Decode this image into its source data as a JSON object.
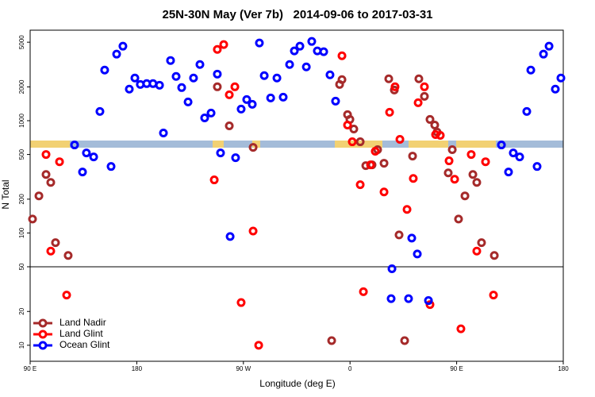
{
  "chart_data": {
    "type": "scatter",
    "title": "25N-30N May (Ver 7b)   2014-09-06 to 2017-03-31",
    "x_label": "Longitude (deg E)",
    "y_label": "N Total",
    "xlim": [
      90,
      540
    ],
    "xticks": [
      {
        "value": 90,
        "label": "90 E"
      },
      {
        "value": 180,
        "label": "180"
      },
      {
        "value": 270,
        "label": "90 W"
      },
      {
        "value": 360,
        "label": "0"
      },
      {
        "value": 450,
        "label": "90 E"
      },
      {
        "value": 540,
        "label": "180"
      }
    ],
    "ylim": [
      7.2,
      6400
    ],
    "yscale": "log",
    "yticks": [
      10,
      20,
      50,
      100,
      200,
      500,
      1000,
      2000,
      5000
    ],
    "hline": 50,
    "legend": "lower left",
    "series": [
      {
        "name": "Land Nadir",
        "color": "#a52a2a",
        "x": [
          92.0,
          97.4,
          103.4,
          107.4,
          111.4,
          122.1,
          248.0,
          258.1,
          278.2,
          344.5,
          351.2,
          353.2,
          357.9,
          359.9,
          363.2,
          368.6,
          373.3,
          378.6,
          383.3,
          388.7,
          392.7,
          397.4,
          401.4,
          406.1,
          412.8,
          418.1,
          422.8,
          427.5,
          431.5,
          433.5,
          442.9,
          446.3,
          451.6,
          457.0,
          463.7,
          467.0,
          471.0,
          481.8
        ],
        "values": [
          133,
          214,
          332,
          282,
          82,
          63,
          2004,
          900,
          579,
          11,
          2104,
          2322,
          1132,
          1026,
          843,
          649,
          398,
          404,
          552,
          418,
          2360,
          1875,
          96,
          11,
          484,
          2360,
          1647,
          1026,
          914,
          791,
          343,
          552,
          133,
          214,
          332,
          282,
          82,
          63
        ]
      },
      {
        "name": "Land Glint",
        "color": "#ff0000",
        "x": [
          103.4,
          107.4,
          114.8,
          120.8,
          245.4,
          248.0,
          253.4,
          258.1,
          262.8,
          268.1,
          278.2,
          282.9,
          353.2,
          357.9,
          361.9,
          368.6,
          371.3,
          377.3,
          381.3,
          388.7,
          393.4,
          398.0,
          402.1,
          408.1,
          413.4,
          417.5,
          422.8,
          427.5,
          432.2,
          436.2,
          443.6,
          448.3,
          453.6,
          462.3,
          467.0,
          474.4,
          481.1
        ],
        "values": [
          500,
          69,
          431,
          28,
          297,
          4315,
          4764,
          1701,
          2004,
          24,
          104,
          10,
          3785,
          914,
          649,
          269,
          30,
          404,
          534,
          232,
          1188,
          2004,
          682,
          162,
          306,
          1445,
          2004,
          23,
          752,
          740,
          439,
          301,
          14,
          500,
          69,
          431,
          28
        ]
      },
      {
        "name": "Ocean Glint",
        "color": "#0000ff",
        "x": [
          127.5,
          134.2,
          137.5,
          143.6,
          148.9,
          152.9,
          158.3,
          163.0,
          168.3,
          173.7,
          178.4,
          183.0,
          188.4,
          193.7,
          199.2,
          202.5,
          208.5,
          213.2,
          217.9,
          223.3,
          227.9,
          233.3,
          237.3,
          242.7,
          248.0,
          250.7,
          258.8,
          263.4,
          268.1,
          272.8,
          277.5,
          283.5,
          287.6,
          293.0,
          298.3,
          303.6,
          309.0,
          313.0,
          317.7,
          323.1,
          327.7,
          332.4,
          337.8,
          343.1,
          347.8,
          395.4,
          394.7,
          409.4,
          412.1,
          416.8,
          426.2,
          487.8,
          493.8,
          497.8,
          503.2,
          509.2,
          512.6,
          517.9,
          523.3,
          528.0,
          533.3,
          538.0
        ],
        "values": [
          608,
          349,
          516,
          476,
          1208,
          2824,
          391,
          3915,
          4608,
          1909,
          2399,
          2104,
          2139,
          2139,
          2070,
          777,
          3436,
          2477,
          1972,
          1469,
          2399,
          3163,
          1059,
          1169,
          2600,
          516,
          93,
          468,
          1268,
          1543,
          1399,
          4920,
          2518,
          1595,
          2399,
          1621,
          3163,
          4180,
          4608,
          3013,
          5080,
          4180,
          4112,
          2559,
          1494,
          48,
          26,
          26,
          90,
          65,
          25,
          608,
          349,
          516,
          476,
          1208,
          2824,
          391,
          3915,
          4608,
          1909,
          2399
        ]
      }
    ]
  }
}
